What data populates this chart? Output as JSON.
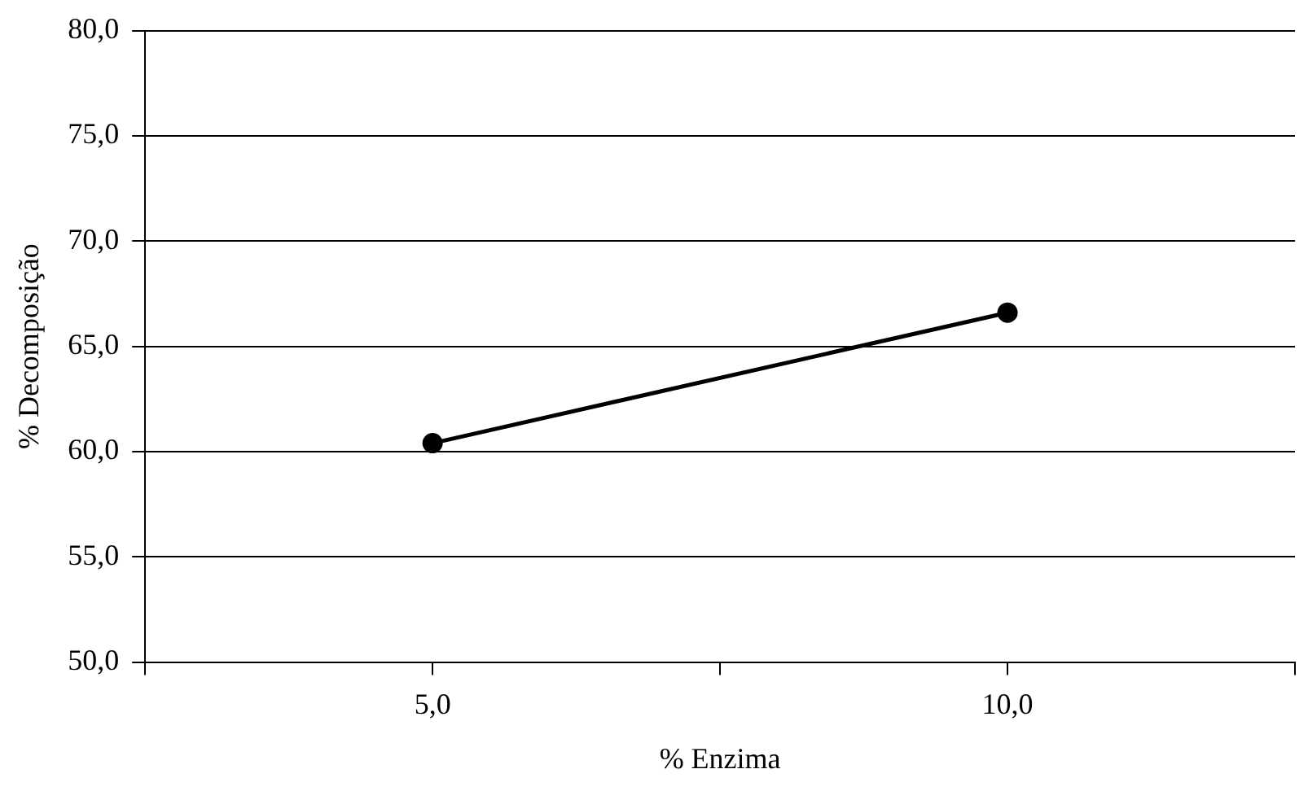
{
  "chart_data": {
    "type": "line",
    "xlabel": "% Enzima",
    "ylabel": "% Decomposição",
    "x": [
      5,
      10
    ],
    "series": [
      {
        "color": "#000000",
        "values": [
          60.4,
          66.6
        ]
      }
    ],
    "xlim": [
      2.5,
      12.5
    ],
    "xticks": [
      {
        "value": 2.5,
        "label": null
      },
      {
        "value": 5,
        "label": "5,0"
      },
      {
        "value": 7.5,
        "label": null
      },
      {
        "value": 10,
        "label": "10,0"
      },
      {
        "value": 12.5,
        "label": null
      }
    ],
    "ylim": [
      50,
      80
    ],
    "yticks": [
      {
        "value": 50,
        "label": "50,0"
      },
      {
        "value": 55,
        "label": "55,0"
      },
      {
        "value": 60,
        "label": "60,0"
      },
      {
        "value": 65,
        "label": "65,0"
      },
      {
        "value": 70,
        "label": "70,0"
      },
      {
        "value": 75,
        "label": "75,0"
      },
      {
        "value": 80,
        "label": "80,0"
      }
    ],
    "grid": "y",
    "legend": false,
    "marker": "circle",
    "line_style": "solid"
  }
}
